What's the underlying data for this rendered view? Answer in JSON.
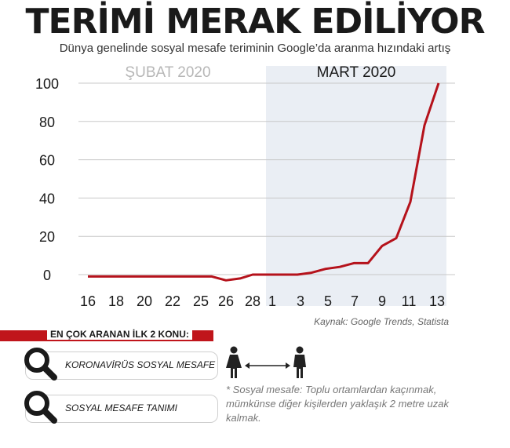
{
  "header": {
    "title": "TERİMİ MERAK EDİLİYOR",
    "subtitle": "Dünya genelinde sosyal mesafe teriminin Google’da aranma hızındaki artış"
  },
  "chart_data": {
    "type": "line",
    "period_labels": [
      "ŞUBAT 2020",
      "MART 2020"
    ],
    "x_tick_labels": [
      "16",
      "18",
      "20",
      "22",
      "25",
      "26",
      "28",
      "1",
      "3",
      "5",
      "7",
      "9",
      "11",
      "13"
    ],
    "x": [
      "Feb 16",
      "Feb 17",
      "Feb 18",
      "Feb 19",
      "Feb 20",
      "Feb 21",
      "Feb 22",
      "Feb 23",
      "Feb 24",
      "Feb 25",
      "Feb 26",
      "Feb 27",
      "Feb 28",
      "Feb 29",
      "Mar 1",
      "Mar 2",
      "Mar 3",
      "Mar 4",
      "Mar 5",
      "Mar 6",
      "Mar 7",
      "Mar 8",
      "Mar 9",
      "Mar 10",
      "Mar 11",
      "Mar 12",
      "Mar 13"
    ],
    "series": [
      {
        "values": [
          -1,
          -1,
          -1,
          -1,
          -1,
          -1,
          -1,
          -1,
          -1,
          -1,
          -3,
          -2,
          0,
          0,
          0,
          0,
          0,
          1,
          3,
          4,
          6,
          6,
          15,
          19,
          38,
          78,
          100
        ]
      }
    ],
    "ylim": [
      0,
      100
    ],
    "y_ticks": [
      0,
      20,
      40,
      60,
      80,
      100
    ],
    "grid": true,
    "highlight_region": "MART 2020",
    "colors": {
      "line": "#b5121b",
      "highlight": "#eaeef4",
      "grid": "#c8c8c8"
    }
  },
  "source": "Kaynak: Google Trends, Statista",
  "top_searches": {
    "heading": "EN ÇOK ARANAN İLK 2 KONU:",
    "items": [
      "KORONAVİRÜS SOSYAL MESAFE",
      "SOSYAL MESAFE TANIMI"
    ],
    "icon": "magnifier-icon"
  },
  "note": "* Sosyal mesafe: Toplu ortamlardan kaçınmak, mümkünse diğer kişilerden yaklaşık 2 metre uzak kalmak.",
  "colors": {
    "accent": "#c0151b",
    "text": "#1a1a1a"
  }
}
